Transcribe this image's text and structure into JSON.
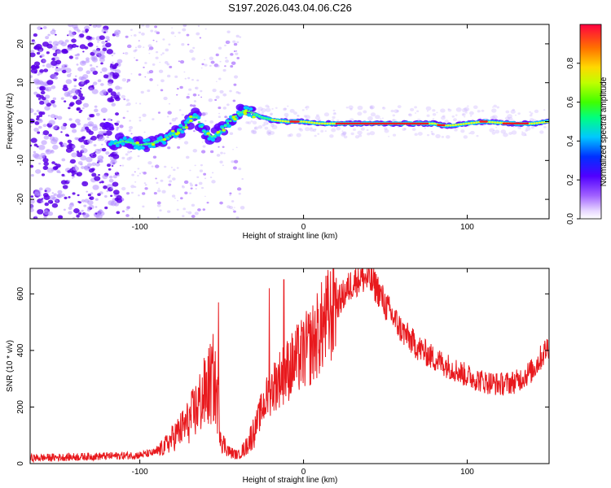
{
  "title": "S197.2026.043.04.06.C26",
  "colors": {
    "snr_line": "#e8191d",
    "spectrogram_track": "#ff1a1a",
    "scatter": "#6a00f0"
  },
  "chart_data": [
    {
      "type": "heatmap",
      "name": "spectrogram",
      "xlabel": "Height of straight line (km)",
      "ylabel": "Frequency (Hz)",
      "xlim": [
        -167,
        150
      ],
      "ylim": [
        -25,
        25
      ],
      "x_ticks": [
        -100,
        0,
        100
      ],
      "y_ticks": [
        -20,
        -10,
        0,
        10,
        20
      ],
      "track_x": [
        -118,
        -110,
        -100,
        -92,
        -85,
        -78,
        -72,
        -66,
        -60,
        -55,
        -50,
        -45,
        -40,
        -35,
        -30,
        -25,
        -20,
        -10,
        0,
        10,
        20,
        40,
        60,
        80,
        85,
        90,
        100,
        110,
        120,
        130,
        140,
        150
      ],
      "track_y": [
        -6,
        -5,
        -6,
        -5.5,
        -4.5,
        -3,
        -1,
        1.5,
        -3,
        -4,
        -2,
        0,
        2,
        3,
        2,
        1,
        0.5,
        0,
        0,
        -0.5,
        -0.5,
        -0.5,
        -0.5,
        -0.5,
        -1,
        -1,
        -0.5,
        0,
        -0.3,
        -0.5,
        -0.5,
        0
      ]
    },
    {
      "type": "line",
      "name": "snr",
      "xlabel": "Height of straight line (km)",
      "ylabel": "SNR (10 * v/v)",
      "xlim": [
        -167,
        150
      ],
      "ylim": [
        0,
        690
      ],
      "x_ticks": [
        -100,
        0,
        100
      ],
      "y_ticks": [
        0,
        200,
        400,
        600
      ],
      "x": [
        -167,
        -150,
        -130,
        -110,
        -100,
        -90,
        -85,
        -80,
        -75,
        -70,
        -65,
        -60,
        -55,
        -52,
        -50,
        -45,
        -40,
        -35,
        -30,
        -25,
        -20,
        -15,
        -10,
        -5,
        0,
        5,
        10,
        20,
        30,
        35,
        40,
        45,
        50,
        60,
        70,
        80,
        90,
        100,
        110,
        120,
        130,
        140,
        150
      ],
      "y": [
        20,
        22,
        25,
        28,
        30,
        40,
        60,
        90,
        120,
        150,
        200,
        250,
        300,
        200,
        80,
        40,
        30,
        60,
        120,
        200,
        260,
        300,
        330,
        360,
        390,
        420,
        470,
        560,
        640,
        660,
        650,
        620,
        560,
        470,
        410,
        370,
        340,
        310,
        290,
        280,
        290,
        330,
        420
      ],
      "peaks": [
        {
          "x": -52,
          "y": 570
        },
        {
          "x": -21,
          "y": 620
        },
        {
          "x": -12,
          "y": 650
        },
        {
          "x": 19,
          "y": 640
        }
      ]
    },
    {
      "type": "colorbar",
      "name": "colorbar",
      "label": "Normalized spectral amplitude",
      "range": [
        0,
        1
      ],
      "ticks": [
        "0.0",
        "0.2",
        "0.4",
        "0.6",
        "0.8"
      ],
      "tick_values": [
        0,
        0.2,
        0.4,
        0.6,
        0.8
      ]
    }
  ]
}
